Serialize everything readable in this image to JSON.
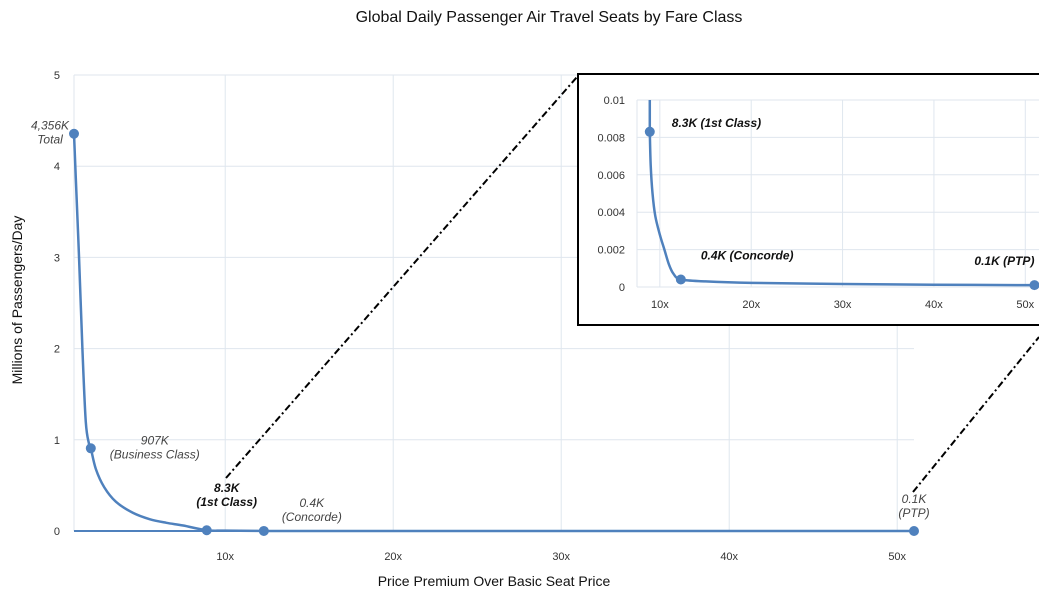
{
  "chart_data": [
    {
      "type": "line",
      "title": "Global Daily Passenger Air Travel Seats by Fare Class",
      "xlabel": "Price Premium Over Basic Seat Price",
      "ylabel": "Millions of Passengers/Day",
      "xlim": [
        1,
        51
      ],
      "ylim": [
        0,
        5
      ],
      "x_tick_labels": [
        "10x",
        "20x",
        "30x",
        "40x",
        "50x"
      ],
      "x_ticks": [
        10,
        20,
        30,
        40,
        50
      ],
      "y_ticks": [
        0,
        1,
        2,
        3,
        4,
        5
      ],
      "y_tick_labels": [
        "0",
        "1",
        "2",
        "3",
        "4",
        "5"
      ],
      "grid": true,
      "curve": {
        "x": [
          1,
          1.1,
          1.3,
          1.5,
          1.7,
          1.9,
          2,
          2.3,
          2.8,
          3.5,
          4.5,
          5.5,
          6.5,
          7.5,
          8.9,
          10,
          12.3,
          15,
          20,
          30,
          40,
          51
        ],
        "y": [
          4.356,
          3.9,
          3.0,
          2.0,
          1.2,
          0.95,
          0.907,
          0.68,
          0.48,
          0.32,
          0.2,
          0.13,
          0.09,
          0.06,
          0.0083,
          0.004,
          0.0004,
          0.0003,
          0.0002,
          0.00015,
          0.00012,
          0.0001
        ]
      },
      "points": [
        {
          "x": 1,
          "y": 4.356,
          "label": [
            "4,356K",
            "Total"
          ],
          "bold": false
        },
        {
          "x": 2,
          "y": 0.907,
          "label": [
            "907K",
            "(Business Class)"
          ],
          "bold": false
        },
        {
          "x": 8.9,
          "y": 0.0083,
          "label": [
            "8.3K",
            "(1st Class)"
          ],
          "bold": true
        },
        {
          "x": 12.3,
          "y": 0.0004,
          "label": [
            "0.4K",
            "(Concorde)"
          ],
          "bold": false
        },
        {
          "x": 51,
          "y": 0.0001,
          "label": [
            "0.1K",
            "(PTP)"
          ],
          "bold": false
        }
      ]
    },
    {
      "type": "line",
      "title": "",
      "xlim": [
        7.5,
        51.5
      ],
      "ylim": [
        0,
        0.01
      ],
      "x_ticks": [
        10,
        20,
        30,
        40,
        50
      ],
      "x_tick_labels": [
        "10x",
        "20x",
        "30x",
        "40x",
        "50x"
      ],
      "y_ticks": [
        0,
        0.002,
        0.004,
        0.006,
        0.008,
        0.01
      ],
      "y_tick_labels": [
        "0",
        "0.002",
        "0.004",
        "0.006",
        "0.008",
        "0.01"
      ],
      "grid": true,
      "curve": {
        "x": [
          8.9,
          9.0,
          9.2,
          9.5,
          10,
          10.5,
          11,
          11.5,
          12.3,
          15,
          20,
          30,
          40,
          51
        ],
        "y": [
          0.0083,
          0.0065,
          0.005,
          0.0038,
          0.0028,
          0.002,
          0.0012,
          0.0007,
          0.0004,
          0.0003,
          0.00022,
          0.00016,
          0.00012,
          0.0001
        ]
      },
      "points": [
        {
          "x": 8.9,
          "y": 0.0083,
          "label": "8.3K (1st Class)"
        },
        {
          "x": 12.3,
          "y": 0.0004,
          "label": "0.4K (Concorde)"
        },
        {
          "x": 51,
          "y": 0.0001,
          "label": "0.1K (PTP)"
        }
      ]
    }
  ]
}
